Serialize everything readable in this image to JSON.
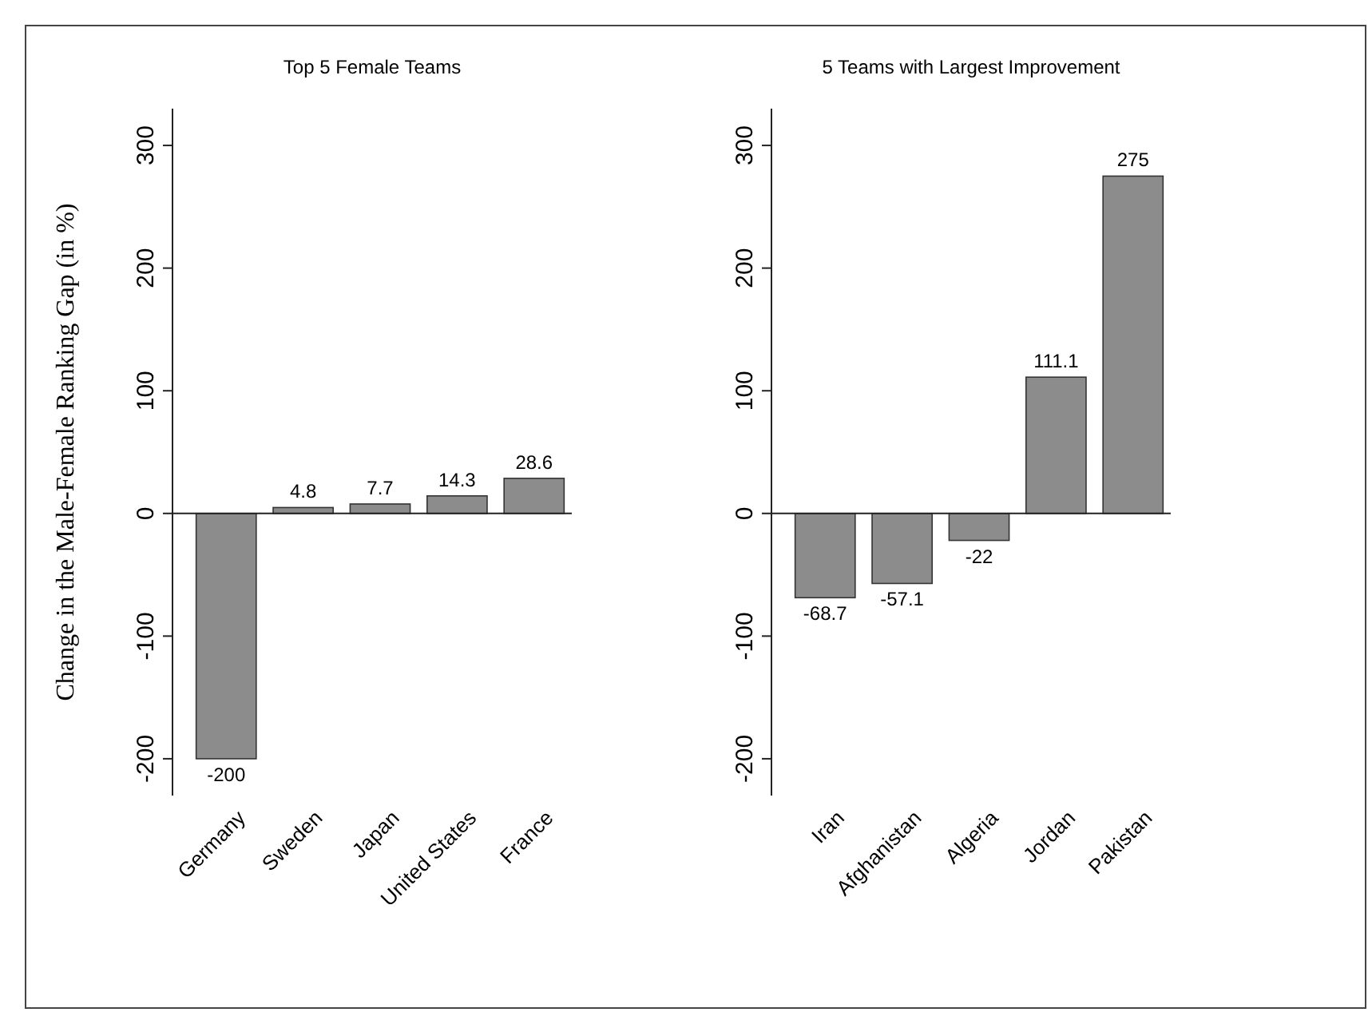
{
  "chart_data": [
    {
      "type": "bar",
      "title": "Top 5 Female Teams",
      "ylabel": "Change in the Male-Female Ranking Gap (in %)",
      "categories": [
        "Germany",
        "Sweden",
        "Japan",
        "United States",
        "France"
      ],
      "values": [
        -200,
        4.8,
        7.7,
        14.3,
        28.6
      ],
      "color": "#8c8c8c",
      "ylim": [
        -230,
        330
      ],
      "yticks": [
        -200,
        -100,
        0,
        100,
        200,
        300
      ],
      "data_labels": true
    },
    {
      "type": "bar",
      "title": "5 Teams with Largest Improvement",
      "categories": [
        "Iran",
        "Afghanistan",
        "Algeria",
        "Jordan",
        "Pakistan"
      ],
      "values": [
        -68.7,
        -57.1,
        -22,
        111.1,
        275
      ],
      "color": "#8c8c8c",
      "ylim": [
        -230,
        330
      ],
      "yticks": [
        -200,
        -100,
        0,
        100,
        200,
        300
      ],
      "data_labels": true
    }
  ]
}
